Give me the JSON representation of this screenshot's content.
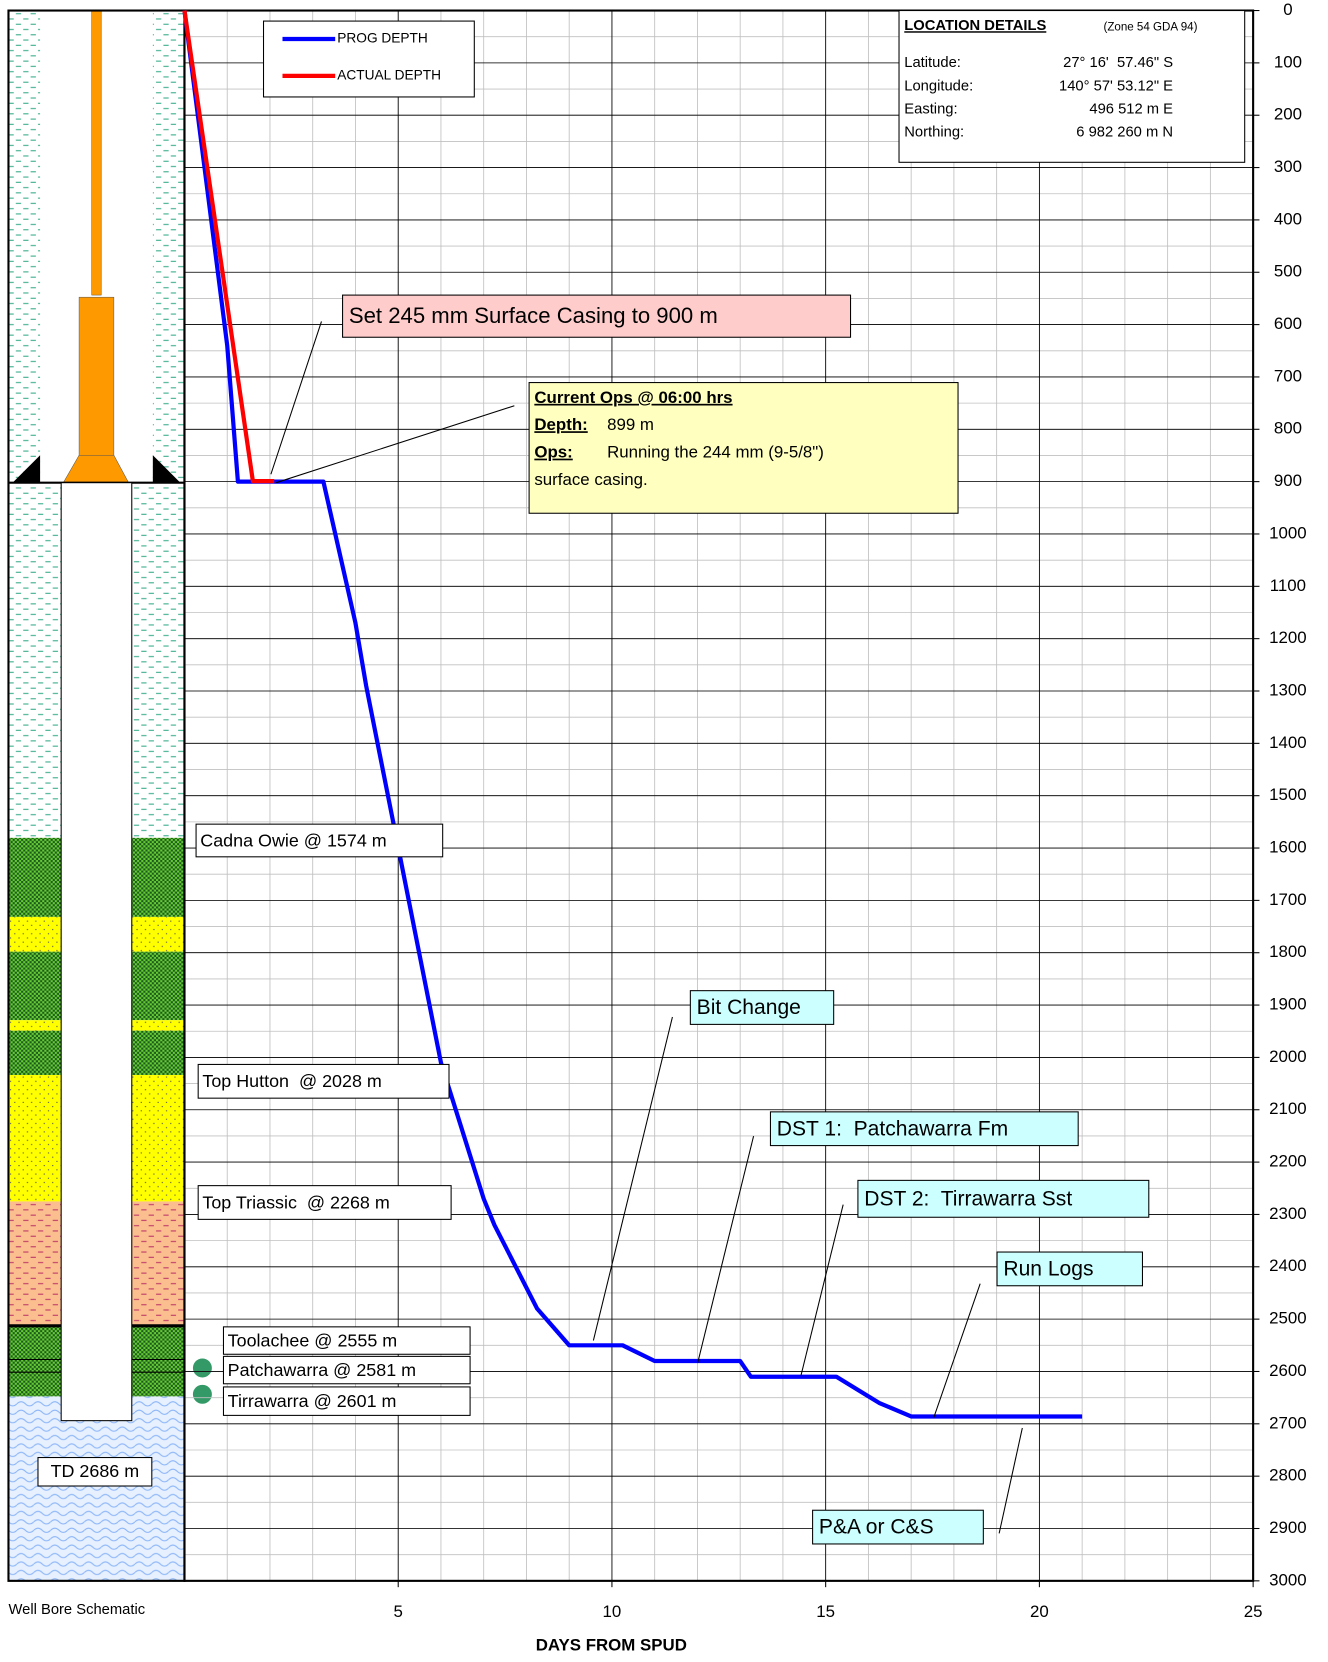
{
  "chart_data": {
    "type": "line",
    "x_label": "DAYS FROM SPUD",
    "schematic_label": "Well Bore Schematic",
    "xlim": [
      0,
      25
    ],
    "xticks": [
      5,
      10,
      15,
      20,
      25
    ],
    "ylim": [
      0,
      3000
    ],
    "y_inverted": true,
    "yticks": [
      0,
      100,
      200,
      300,
      400,
      500,
      600,
      700,
      800,
      900,
      1000,
      1100,
      1200,
      1300,
      1400,
      1500,
      1600,
      1700,
      1800,
      1900,
      2000,
      2100,
      2200,
      2300,
      2400,
      2500,
      2600,
      2700,
      2800,
      2900,
      3000
    ],
    "grid": true,
    "series": [
      {
        "name": "PROG DEPTH",
        "color": "#0000ff",
        "x": [
          0,
          1,
          1.25,
          3.25,
          4,
          4.25,
          6,
          7,
          7.25,
          8.25,
          9,
          10.25,
          11,
          13,
          13.25,
          15.25,
          16.25,
          17,
          21
        ],
        "values": [
          0,
          640,
          900,
          900,
          1170,
          1290,
          2010,
          2270,
          2320,
          2480,
          2550,
          2550,
          2580,
          2580,
          2610,
          2610,
          2660,
          2686,
          2686
        ]
      },
      {
        "name": "ACTUAL DEPTH",
        "color": "#ff0000",
        "x": [
          0,
          1.6,
          2.1
        ],
        "values": [
          0,
          899,
          899
        ]
      }
    ],
    "callouts": [
      "Set 245 mm Surface Casing to 900 m",
      "Bit Change",
      "DST 1:  Patchawarra Fm",
      "DST 2:  Tirrawarra Sst",
      "Run Logs",
      "P&A or C&S"
    ],
    "current_ops": {
      "title": "Current Ops @ 06:00 hrs",
      "depth_label": "Depth:",
      "depth": "899 m",
      "ops_label": "Ops:",
      "ops_lines": [
        "Running the 244 mm (9-5/8\")",
        "surface casing."
      ]
    },
    "formations": [
      "Cadna Owie @ 1574 m",
      "Top Hutton  @ 2028 m",
      "Top Triassic  @ 2268 m",
      "Toolachee @ 2555 m",
      "Patchawarra @ 2581 m",
      "Tirrawarra @ 2601 m"
    ],
    "td_label": "TD 2686 m",
    "location": {
      "title": "LOCATION DETAILS",
      "zone": "(Zone 54 GDA 94)",
      "rows": [
        [
          "Latitude:",
          "27° 16'  57.46\" S"
        ],
        [
          "Longitude:",
          "140° 57' 53.12\" E"
        ],
        [
          "Easting:",
          "496 512 m E"
        ],
        [
          "Northing:",
          "6 982 260 m N"
        ]
      ]
    }
  }
}
